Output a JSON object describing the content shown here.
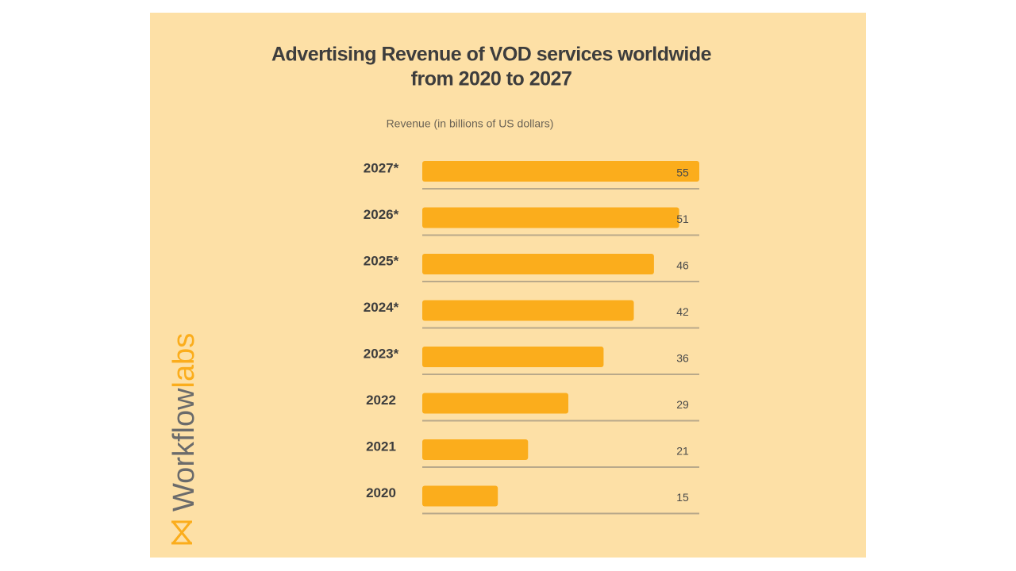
{
  "chart_data": {
    "type": "bar",
    "orientation": "horizontal",
    "title": "Advertising Revenue of VOD services worldwide",
    "subtitle": "from 2020 to 2027",
    "x_label": "Revenue (in billions of US dollars)",
    "categories": [
      "2027*",
      "2026*",
      "2025*",
      "2024*",
      "2023*",
      "2022",
      "2021",
      "2020"
    ],
    "values": [
      55,
      51,
      46,
      42,
      36,
      29,
      21,
      15
    ],
    "color": "#fbad1c"
  },
  "brand": {
    "part1": "Workflow",
    "part2": "labs"
  }
}
